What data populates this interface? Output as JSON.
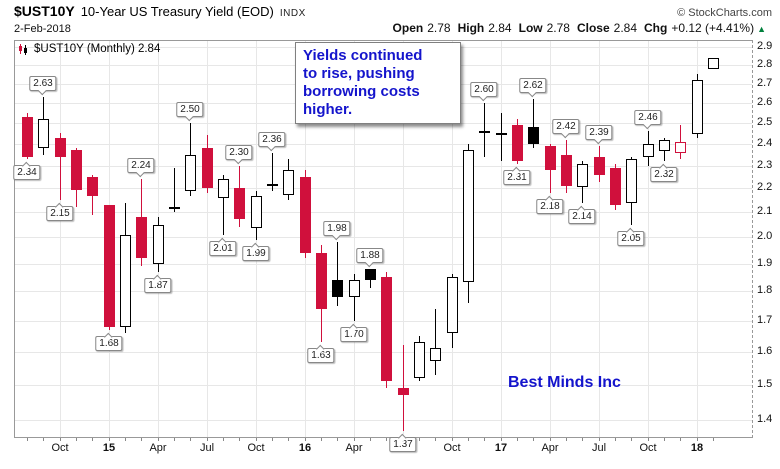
{
  "header": {
    "symbol": "$UST10Y",
    "title": "10-Year US Treasury Yield (EOD)",
    "exchange": "INDX",
    "copyright": "© StockCharts.com",
    "date": "2-Feb-2018",
    "quote": {
      "open_label": "Open",
      "open": "2.78",
      "high_label": "High",
      "high": "2.84",
      "low_label": "Low",
      "low": "2.78",
      "close_label": "Close",
      "close": "2.84",
      "chg_label": "Chg",
      "chg": "+0.12 (+4.41%)",
      "direction_icon": "▲"
    }
  },
  "legend": {
    "text": "$UST10Y (Monthly) 2.84"
  },
  "annotation": {
    "text": "Yields continued\nto rise, pushing\nborrowing costs\nhigher."
  },
  "watermark": "Best Minds Inc",
  "colors": {
    "down": "#d0103c",
    "up_border": "#000000",
    "black_fill": "#000000",
    "annotation_blue": "#1414cc",
    "change_green": "#00803c",
    "grid": "#e7e7e7",
    "frame": "#999999"
  },
  "chart_data": {
    "type": "candlestick",
    "title": "$UST10Y (Monthly)",
    "timeframe": "Monthly",
    "last_value": 2.84,
    "y_axis": {
      "min": 1.4,
      "max": 2.9,
      "step": 0.1,
      "scale": "log",
      "position": "right",
      "tick_labels": [
        "2.9",
        "2.8",
        "2.7",
        "2.6",
        "2.5",
        "2.4",
        "2.3",
        "2.2",
        "2.1",
        "2.0",
        "1.9",
        "1.8",
        "1.7",
        "1.6",
        "1.5",
        "1.4"
      ]
    },
    "x_ticks": [
      {
        "index": 2,
        "label": "Oct",
        "year": false
      },
      {
        "index": 5,
        "label": "15",
        "year": true
      },
      {
        "index": 8,
        "label": "Apr",
        "year": false
      },
      {
        "index": 11,
        "label": "Jul",
        "year": false
      },
      {
        "index": 14,
        "label": "Oct",
        "year": false
      },
      {
        "index": 17,
        "label": "16",
        "year": true
      },
      {
        "index": 20,
        "label": "Apr",
        "year": false
      },
      {
        "index": 23,
        "label": "Jul",
        "year": false
      },
      {
        "index": 26,
        "label": "Oct",
        "year": false
      },
      {
        "index": 29,
        "label": "17",
        "year": true
      },
      {
        "index": 32,
        "label": "Apr",
        "year": false
      },
      {
        "index": 35,
        "label": "Jul",
        "year": false
      },
      {
        "index": 38,
        "label": "Oct",
        "year": false
      },
      {
        "index": 41,
        "label": "18",
        "year": true
      }
    ],
    "series": [
      {
        "m": "Aug 2014",
        "o": 2.53,
        "h": 2.55,
        "l": 2.33,
        "c": 2.34,
        "k": "down",
        "lbl": "2.34",
        "lp": "below"
      },
      {
        "m": "Sep 2014",
        "o": 2.38,
        "h": 2.63,
        "l": 2.35,
        "c": 2.52,
        "k": "up",
        "lbl": "2.63",
        "lp": "above"
      },
      {
        "m": "Oct 2014",
        "o": 2.43,
        "h": 2.45,
        "l": 2.15,
        "c": 2.34,
        "k": "down",
        "lbl": "2.15",
        "lp": "below"
      },
      {
        "m": "Nov 2014",
        "o": 2.37,
        "h": 2.38,
        "l": 2.12,
        "c": 2.19,
        "k": "down"
      },
      {
        "m": "Dec 2014",
        "o": 2.25,
        "h": 2.26,
        "l": 2.09,
        "c": 2.17,
        "k": "down"
      },
      {
        "m": "Jan 2015",
        "o": 2.13,
        "h": 2.13,
        "l": 1.67,
        "c": 1.68,
        "k": "down",
        "lbl": "1.68",
        "lp": "below"
      },
      {
        "m": "Feb 2015",
        "o": 1.68,
        "h": 2.14,
        "l": 1.66,
        "c": 2.01,
        "k": "up"
      },
      {
        "m": "Mar 2015",
        "o": 2.08,
        "h": 2.24,
        "l": 1.89,
        "c": 1.92,
        "k": "down",
        "lbl": "2.24",
        "lp": "above"
      },
      {
        "m": "Apr 2015",
        "o": 1.9,
        "h": 2.08,
        "l": 1.87,
        "c": 2.05,
        "k": "up",
        "lbl": "1.87",
        "lp": "below"
      },
      {
        "m": "May 2015",
        "o": 2.11,
        "h": 2.29,
        "l": 2.1,
        "c": 2.12,
        "k": "up"
      },
      {
        "m": "Jun 2015",
        "o": 2.19,
        "h": 2.5,
        "l": 2.17,
        "c": 2.35,
        "k": "up",
        "lbl": "2.50",
        "lp": "above"
      },
      {
        "m": "Jul 2015",
        "o": 2.38,
        "h": 2.44,
        "l": 2.18,
        "c": 2.2,
        "k": "down"
      },
      {
        "m": "Aug 2015",
        "o": 2.16,
        "h": 2.26,
        "l": 2.01,
        "c": 2.24,
        "k": "up",
        "lbl": "2.01",
        "lp": "below"
      },
      {
        "m": "Sep 2015",
        "o": 2.2,
        "h": 2.3,
        "l": 2.04,
        "c": 2.07,
        "k": "down",
        "lbl": "2.30",
        "lp": "above"
      },
      {
        "m": "Oct 2015",
        "o": 2.04,
        "h": 2.19,
        "l": 1.99,
        "c": 2.17,
        "k": "up",
        "lbl": "1.99",
        "lp": "below"
      },
      {
        "m": "Nov 2015",
        "o": 2.21,
        "h": 2.36,
        "l": 2.19,
        "c": 2.22,
        "k": "up",
        "lbl": "2.36",
        "lp": "above"
      },
      {
        "m": "Dec 2015",
        "o": 2.17,
        "h": 2.33,
        "l": 2.15,
        "c": 2.28,
        "k": "up"
      },
      {
        "m": "Jan 2016",
        "o": 2.25,
        "h": 2.28,
        "l": 1.92,
        "c": 1.94,
        "k": "down"
      },
      {
        "m": "Feb 2016",
        "o": 1.94,
        "h": 1.97,
        "l": 1.63,
        "c": 1.74,
        "k": "down",
        "lbl": "1.63",
        "lp": "below"
      },
      {
        "m": "Mar 2016",
        "o": 1.84,
        "h": 1.98,
        "l": 1.75,
        "c": 1.78,
        "k": "black",
        "lbl": "1.98",
        "lp": "above"
      },
      {
        "m": "Apr 2016",
        "o": 1.78,
        "h": 1.86,
        "l": 1.7,
        "c": 1.84,
        "k": "up",
        "lbl": "1.70",
        "lp": "below"
      },
      {
        "m": "May 2016",
        "o": 1.88,
        "h": 1.88,
        "l": 1.81,
        "c": 1.84,
        "k": "black",
        "lbl": "1.88",
        "lp": "above"
      },
      {
        "m": "Jun 2016",
        "o": 1.85,
        "h": 1.87,
        "l": 1.49,
        "c": 1.51,
        "k": "down"
      },
      {
        "m": "Jul 2016",
        "o": 1.49,
        "h": 1.62,
        "l": 1.37,
        "c": 1.47,
        "k": "down",
        "lbl": "1.37",
        "lp": "below"
      },
      {
        "m": "Aug 2016",
        "o": 1.52,
        "h": 1.65,
        "l": 1.51,
        "c": 1.63,
        "k": "up"
      },
      {
        "m": "Sep 2016",
        "o": 1.57,
        "h": 1.74,
        "l": 1.53,
        "c": 1.61,
        "k": "up"
      },
      {
        "m": "Oct 2016",
        "o": 1.66,
        "h": 1.86,
        "l": 1.61,
        "c": 1.85,
        "k": "up"
      },
      {
        "m": "Nov 2016",
        "o": 1.83,
        "h": 2.4,
        "l": 1.76,
        "c": 2.37,
        "k": "up"
      },
      {
        "m": "Dec 2016",
        "o": 2.45,
        "h": 2.6,
        "l": 2.34,
        "c": 2.46,
        "k": "up",
        "lbl": "2.60",
        "lp": "above"
      },
      {
        "m": "Jan 2017",
        "o": 2.45,
        "h": 2.55,
        "l": 2.32,
        "c": 2.45,
        "k": "up"
      },
      {
        "m": "Feb 2017",
        "o": 2.49,
        "h": 2.52,
        "l": 2.31,
        "c": 2.32,
        "k": "down",
        "lbl": "2.31",
        "lp": "below"
      },
      {
        "m": "Mar 2017",
        "o": 2.48,
        "h": 2.62,
        "l": 2.38,
        "c": 2.4,
        "k": "black",
        "lbl": "2.62",
        "lp": "above"
      },
      {
        "m": "Apr 2017",
        "o": 2.39,
        "h": 2.4,
        "l": 2.18,
        "c": 2.28,
        "k": "down",
        "lbl": "2.18",
        "lp": "below"
      },
      {
        "m": "May 2017",
        "o": 2.35,
        "h": 2.42,
        "l": 2.18,
        "c": 2.21,
        "k": "down",
        "lbl": "2.42",
        "lp": "above"
      },
      {
        "m": "Jun 2017",
        "o": 2.21,
        "h": 2.32,
        "l": 2.14,
        "c": 2.31,
        "k": "up",
        "lbl": "2.14",
        "lp": "below"
      },
      {
        "m": "Jul 2017",
        "o": 2.34,
        "h": 2.39,
        "l": 2.23,
        "c": 2.26,
        "k": "down",
        "lbl": "2.39",
        "lp": "above"
      },
      {
        "m": "Aug 2017",
        "o": 2.29,
        "h": 2.31,
        "l": 2.11,
        "c": 2.13,
        "k": "down"
      },
      {
        "m": "Sep 2017",
        "o": 2.14,
        "h": 2.34,
        "l": 2.05,
        "c": 2.33,
        "k": "up",
        "lbl": "2.05",
        "lp": "below"
      },
      {
        "m": "Oct 2017",
        "o": 2.34,
        "h": 2.46,
        "l": 2.3,
        "c": 2.4,
        "k": "up",
        "lbl": "2.46",
        "lp": "above"
      },
      {
        "m": "Nov 2017",
        "o": 2.37,
        "h": 2.43,
        "l": 2.32,
        "c": 2.42,
        "k": "up",
        "lbl": "2.32",
        "lp": "below"
      },
      {
        "m": "Dec 2017",
        "o": 2.36,
        "h": 2.49,
        "l": 2.33,
        "c": 2.41,
        "k": "hollow-red"
      },
      {
        "m": "Jan 2018",
        "o": 2.45,
        "h": 2.75,
        "l": 2.43,
        "c": 2.72,
        "k": "up"
      },
      {
        "m": "Feb 2018",
        "o": 2.78,
        "h": 2.84,
        "l": 2.78,
        "c": 2.84,
        "k": "up"
      }
    ]
  }
}
